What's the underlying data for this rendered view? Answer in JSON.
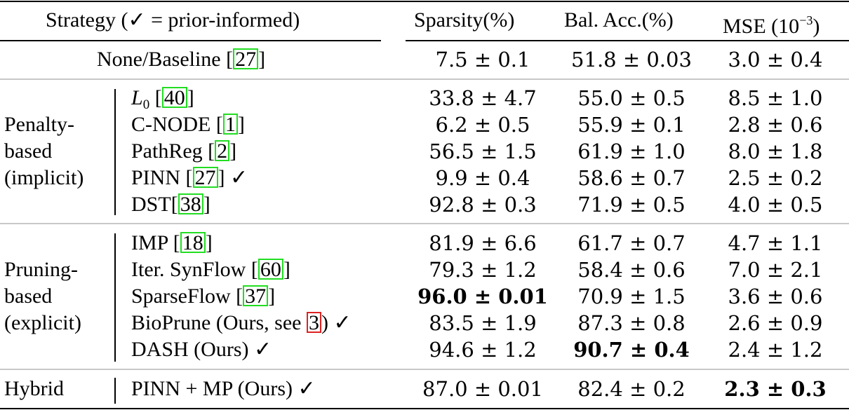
{
  "table": {
    "headers": {
      "strategy": "Strategy (✓ = prior-informed)",
      "sparsity": "Sparsity(%)",
      "bal_acc": "Bal. Acc.(%)",
      "mse_prefix": "MSE (10",
      "mse_exp": "−3",
      "mse_suffix": ")"
    },
    "baseline": {
      "label": "None/Baseline [",
      "cite": "27",
      "label_end": "]",
      "sparsity": "7.5 ± 0.1",
      "bal_acc": "51.8 ± 0.03",
      "mse": "3.0 ± 0.4"
    },
    "groups": [
      {
        "name_lines": [
          "Penalty-",
          "based",
          "(implicit)"
        ],
        "rows": [
          {
            "method": "L",
            "method_sub": "0",
            "pre": " [",
            "cite": "40",
            "post": "]",
            "check": "",
            "sparsity": "33.8 ± 4.7",
            "bal_acc": "55.0 ± 0.5",
            "mse": "8.5 ± 1.0"
          },
          {
            "method": "C-NODE",
            "pre": " [",
            "cite": "1",
            "post": "]",
            "check": "",
            "sparsity": "6.2 ± 0.5",
            "bal_acc": "55.9 ± 0.1",
            "mse": "2.8 ± 0.6"
          },
          {
            "method": "PathReg",
            "pre": " [",
            "cite": "2",
            "post": "]",
            "check": "",
            "sparsity": "56.5 ± 1.5",
            "bal_acc": "61.9 ± 1.0",
            "mse": "8.0 ± 1.8"
          },
          {
            "method": "PINN",
            "pre": " [",
            "cite": "27",
            "post": "]",
            "check": " ✓",
            "sparsity": "9.9 ± 0.4",
            "bal_acc": "58.6 ± 0.7",
            "mse": "2.5 ± 0.2"
          },
          {
            "method": "DST",
            "pre": "[",
            "cite": "38",
            "post": "]",
            "check": "",
            "sparsity": "92.8 ± 0.3",
            "bal_acc": "71.9 ± 0.5",
            "mse": "4.0 ± 0.5"
          }
        ]
      },
      {
        "name_lines": [
          "Pruning-",
          "based",
          "(explicit)"
        ],
        "rows": [
          {
            "method": "IMP",
            "pre": " [",
            "cite": "18",
            "post": "]",
            "check": "",
            "sparsity": "81.9 ± 6.6",
            "bal_acc": "61.7 ± 0.7",
            "mse": "4.7 ± 1.1"
          },
          {
            "method": "Iter. SynFlow",
            "pre": " [",
            "cite": "60",
            "post": "]",
            "check": "",
            "sparsity": "79.3 ± 1.2",
            "bal_acc": "58.4 ± 0.6",
            "mse": "7.0 ± 2.1"
          },
          {
            "method": "SparseFlow",
            "pre": " [",
            "cite": "37",
            "post": "]",
            "check": "",
            "sparsity": "96.0 ± 0.01",
            "sparsity_bold": true,
            "bal_acc": "70.9 ± 1.5",
            "mse": "3.6 ± 0.6"
          },
          {
            "method": "BioPrune (Ours, see ",
            "pre": "",
            "cite": "3",
            "cite_color": "red",
            "post": ")",
            "check": " ✓",
            "sparsity": "83.5 ± 1.9",
            "bal_acc": "87.3 ± 0.8",
            "mse": "2.6 ± 0.9"
          },
          {
            "method": "DASH (Ours)",
            "pre": "",
            "cite": "",
            "post": "",
            "check": " ✓",
            "sparsity": "94.6 ± 1.2",
            "bal_acc": "90.7 ± 0.4",
            "bal_acc_bold": true,
            "mse": "2.4 ± 1.2"
          }
        ]
      },
      {
        "name_lines": [
          "Hybrid"
        ],
        "rows": [
          {
            "method": "PINN + MP (Ours)",
            "pre": "",
            "cite": "",
            "post": "",
            "check": " ✓",
            "sparsity": "87.0 ± 0.01",
            "bal_acc": "82.4 ± 0.2",
            "mse": "2.3 ± 0.3",
            "mse_bold": true
          }
        ]
      }
    ],
    "colors": {
      "cite_box": "#22dd22",
      "figure_ref_box": "#dd2222",
      "midrule": "#c8c8c8",
      "text": "#000000"
    }
  }
}
